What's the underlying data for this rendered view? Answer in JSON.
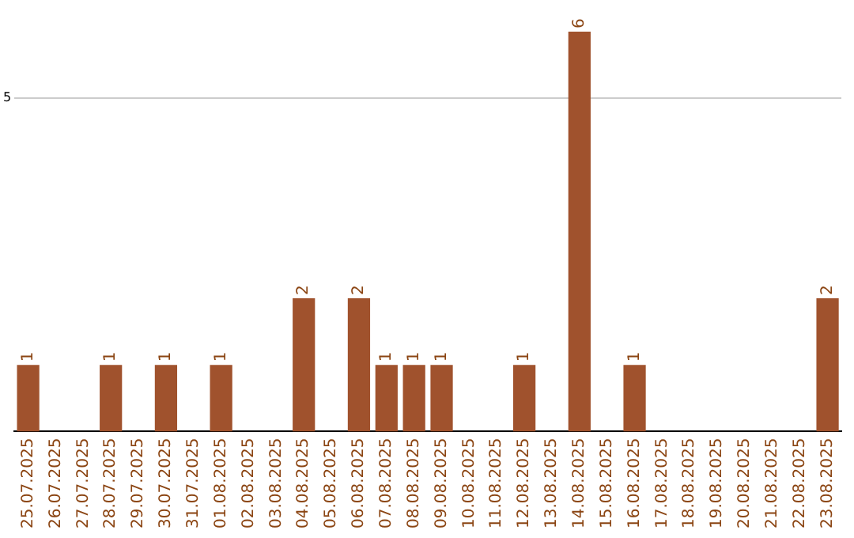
{
  "chart_data": {
    "type": "bar",
    "categories": [
      "25.07.2025",
      "26.07.2025",
      "27.07.2025",
      "28.07.2025",
      "29.07.2025",
      "30.07.2025",
      "31.07.2025",
      "01.08.2025",
      "02.08.2025",
      "03.08.2025",
      "04.08.2025",
      "05.08.2025",
      "06.08.2025",
      "07.08.2025",
      "08.08.2025",
      "09.08.2025",
      "10.08.2025",
      "11.08.2025",
      "12.08.2025",
      "13.08.2025",
      "14.08.2025",
      "15.08.2025",
      "16.08.2025",
      "17.08.2025",
      "18.08.2025",
      "19.08.2025",
      "20.08.2025",
      "21.08.2025",
      "22.08.2025",
      "23.08.2025"
    ],
    "values": [
      1,
      0,
      0,
      1,
      0,
      1,
      0,
      1,
      0,
      0,
      2,
      0,
      2,
      1,
      1,
      1,
      0,
      0,
      1,
      0,
      6,
      0,
      1,
      0,
      0,
      0,
      0,
      0,
      0,
      2
    ],
    "value_labels": [
      "1",
      null,
      null,
      "1",
      null,
      "1",
      null,
      "1",
      null,
      null,
      "2",
      null,
      "2",
      "1",
      "1",
      "1",
      null,
      null,
      "1",
      null,
      "6",
      null,
      "1",
      null,
      null,
      null,
      null,
      null,
      null,
      "2"
    ],
    "color": "#a0522d",
    "ylim": [
      0,
      6
    ],
    "yticks": [
      5
    ],
    "grid": "y",
    "legend": false
  }
}
